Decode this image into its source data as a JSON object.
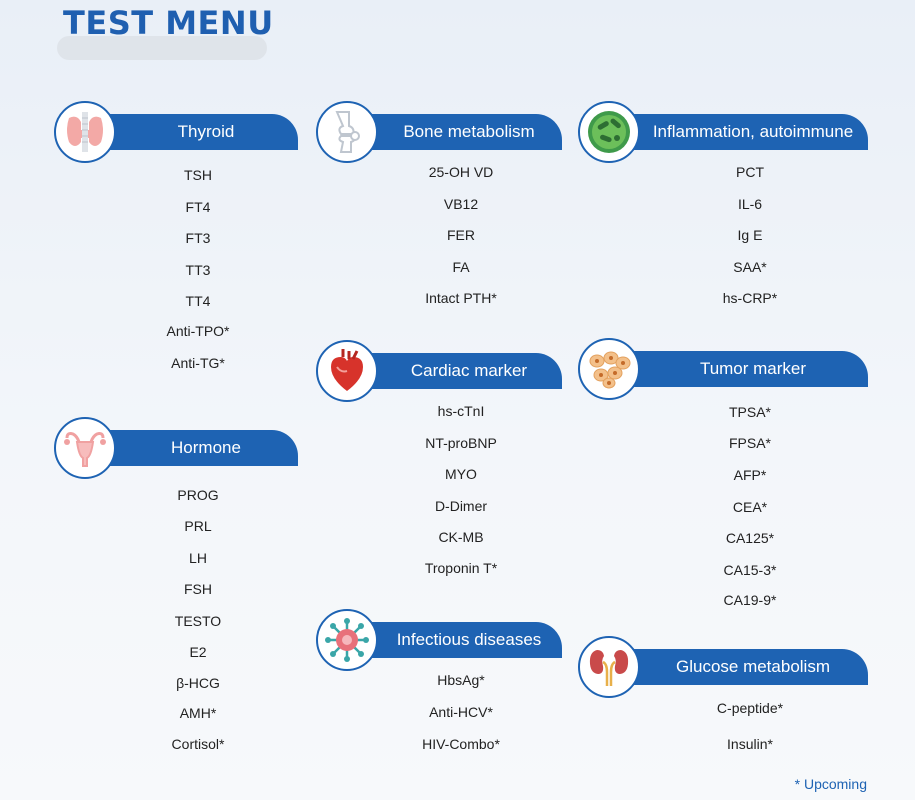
{
  "page": {
    "title": "TEST MENU",
    "footnote": "* Upcoming"
  },
  "categories": {
    "thyroid": {
      "title": "Thyroid",
      "icon": "thyroid-icon",
      "items": [
        "TSH",
        "FT4",
        "FT3",
        "TT3",
        "TT4",
        "Anti-TPO*",
        "Anti-TG*"
      ]
    },
    "hormone": {
      "title": "Hormone",
      "icon": "uterus-icon",
      "items": [
        "PROG",
        "PRL",
        "LH",
        "FSH",
        "TESTO",
        "E2",
        "β-HCG",
        "AMH*",
        "Cortisol*"
      ]
    },
    "bone": {
      "title": "Bone metabolism",
      "icon": "bone-joint-icon",
      "items": [
        "25-OH VD",
        "VB12",
        "FER",
        "FA",
        "Intact PTH*"
      ]
    },
    "cardiac": {
      "title": "Cardiac marker",
      "icon": "heart-icon",
      "items": [
        "hs-cTnI",
        "NT-proBNP",
        "MYO",
        "D-Dimer",
        "CK-MB",
        "Troponin T*"
      ]
    },
    "infectious": {
      "title": "Infectious diseases",
      "icon": "virus-icon",
      "items": [
        "HbsAg*",
        "Anti-HCV*",
        "HIV-Combo*"
      ]
    },
    "inflammation": {
      "title": "Inflammation, autoimmune",
      "icon": "bacteria-icon",
      "items": [
        "PCT",
        "IL-6",
        "Ig E",
        "SAA*",
        "hs-CRP*"
      ]
    },
    "tumor": {
      "title": "Tumor marker",
      "icon": "cells-icon",
      "items": [
        "TPSA*",
        "FPSA*",
        "AFP*",
        "CEA*",
        "CA125*",
        "CA15-3*",
        "CA19-9*"
      ]
    },
    "glucose": {
      "title": "Glucose metabolism",
      "icon": "kidney-icon",
      "items": [
        "C-peptide*",
        "Insulin*"
      ]
    }
  },
  "colors": {
    "brand": "#1e63b3",
    "title": "#1f5fb0"
  }
}
